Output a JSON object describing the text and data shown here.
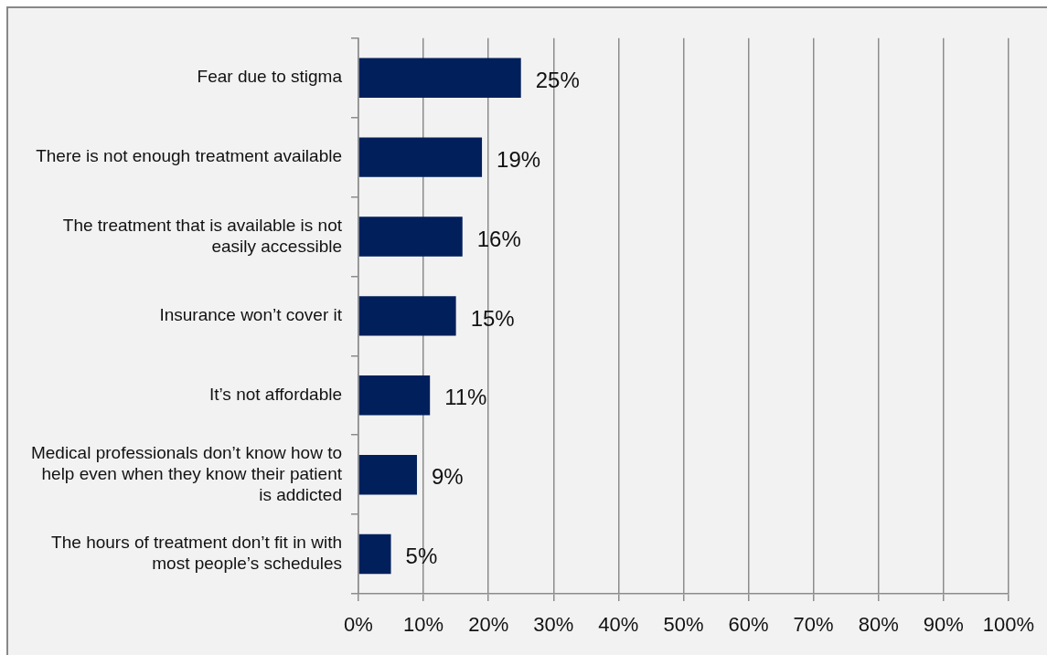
{
  "chart_data": {
    "type": "bar",
    "orientation": "horizontal",
    "categories": [
      "Fear due to stigma",
      "There is not enough treatment available",
      "The treatment that is available is not easily accessible",
      "Insurance won’t cover it",
      "It’s not affordable",
      "Medical professionals don’t know how to help even when they know their patient is addicted",
      "The hours of treatment don’t fit in with most people’s schedules"
    ],
    "values": [
      25,
      19,
      16,
      15,
      11,
      9,
      5
    ],
    "value_labels": [
      "25%",
      "19%",
      "16%",
      "15%",
      "11%",
      "9%",
      "5%"
    ],
    "color": "#001f5b",
    "xlim": [
      0,
      100
    ],
    "xticks": [
      {
        "value": 0,
        "label": "0%"
      },
      {
        "value": 10,
        "label": "10%"
      },
      {
        "value": 20,
        "label": "20%"
      },
      {
        "value": 30,
        "label": "30%"
      },
      {
        "value": 40,
        "label": "40%"
      },
      {
        "value": 50,
        "label": "50%"
      },
      {
        "value": 60,
        "label": "60%"
      },
      {
        "value": 70,
        "label": "70%"
      },
      {
        "value": 80,
        "label": "80%"
      },
      {
        "value": 90,
        "label": "90%"
      },
      {
        "value": 100,
        "label": "100%"
      }
    ],
    "grid": "x"
  }
}
